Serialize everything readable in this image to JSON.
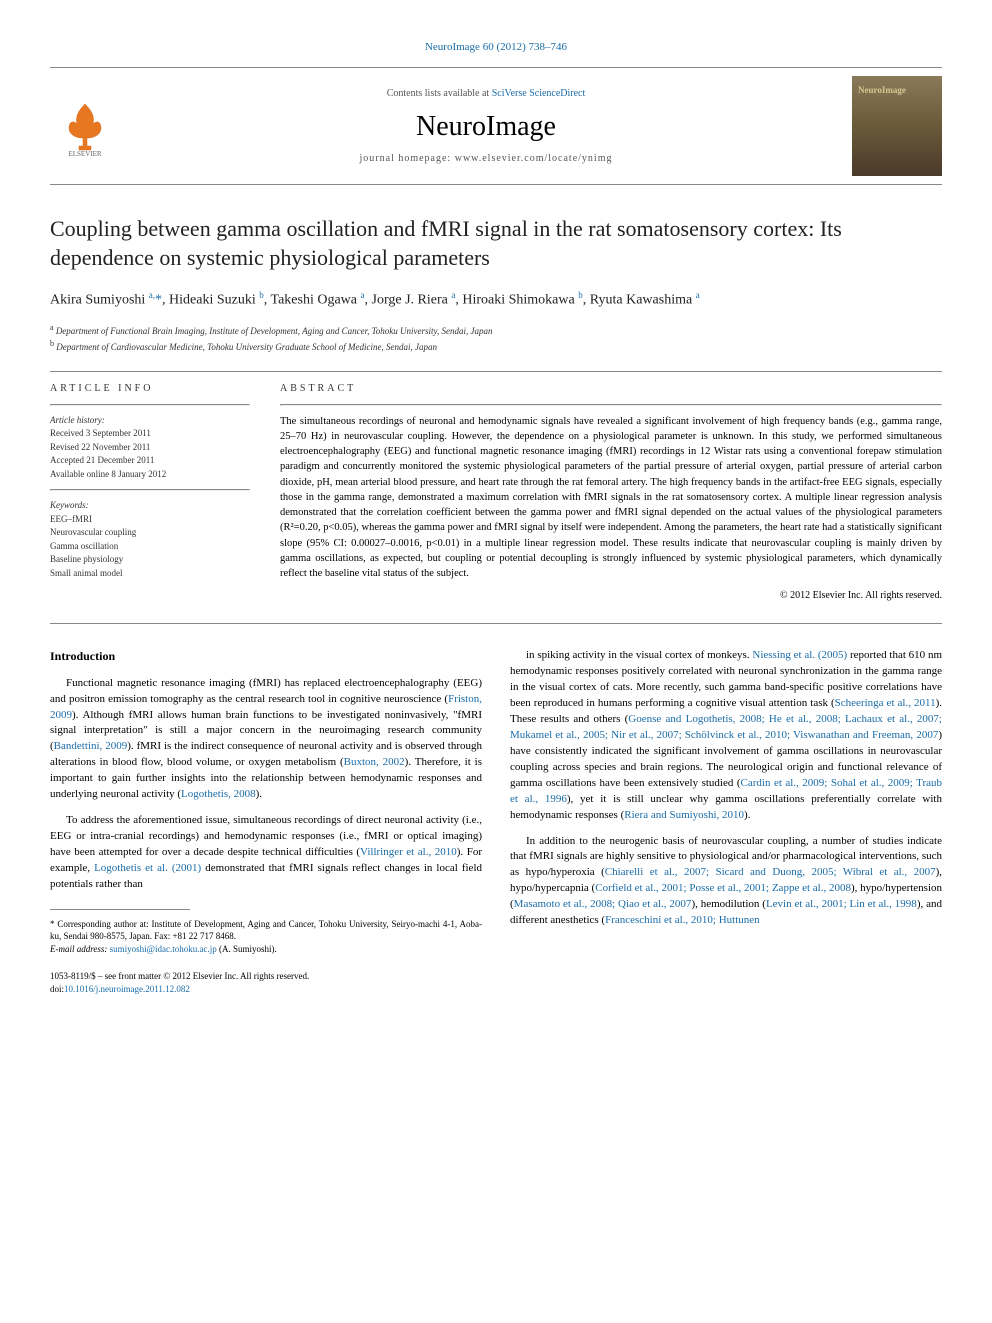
{
  "header": {
    "citation": "NeuroImage 60 (2012) 738–746",
    "contents_prefix": "Contents lists available at ",
    "contents_link": "SciVerse ScienceDirect",
    "journal_name": "NeuroImage",
    "homepage_prefix": "journal homepage: ",
    "homepage_url": "www.elsevier.com/locate/ynimg",
    "cover_label": "NeuroImage"
  },
  "article": {
    "title": "Coupling between gamma oscillation and fMRI signal in the rat somatosensory cortex: Its dependence on systemic physiological parameters",
    "authors_html": "Akira Sumiyoshi <span class='sup'>a,</span><span class='corr'>*</span>, Hideaki Suzuki <span class='sup'>b</span>, Takeshi Ogawa <span class='sup'>a</span>, Jorge J. Riera <span class='sup'>a</span>, Hiroaki Shimokawa <span class='sup'>b</span>, Ryuta Kawashima <span class='sup'>a</span>",
    "affiliations": [
      {
        "sup": "a",
        "text": "Department of Functional Brain Imaging, Institute of Development, Aging and Cancer, Tohoku University, Sendai, Japan"
      },
      {
        "sup": "b",
        "text": "Department of Cardiovascular Medicine, Tohoku University Graduate School of Medicine, Sendai, Japan"
      }
    ]
  },
  "article_info": {
    "heading": "ARTICLE INFO",
    "history_label": "Article history:",
    "history": [
      "Received 3 September 2011",
      "Revised 22 November 2011",
      "Accepted 21 December 2011",
      "Available online 8 January 2012"
    ],
    "keywords_label": "Keywords:",
    "keywords": [
      "EEG–fMRI",
      "Neurovascular coupling",
      "Gamma oscillation",
      "Baseline physiology",
      "Small animal model"
    ]
  },
  "abstract": {
    "heading": "ABSTRACT",
    "text": "The simultaneous recordings of neuronal and hemodynamic signals have revealed a significant involvement of high frequency bands (e.g., gamma range, 25–70 Hz) in neurovascular coupling. However, the dependence on a physiological parameter is unknown. In this study, we performed simultaneous electroencephalography (EEG) and functional magnetic resonance imaging (fMRI) recordings in 12 Wistar rats using a conventional forepaw stimulation paradigm and concurrently monitored the systemic physiological parameters of the partial pressure of arterial oxygen, partial pressure of arterial carbon dioxide, pH, mean arterial blood pressure, and heart rate through the rat femoral artery. The high frequency bands in the artifact-free EEG signals, especially those in the gamma range, demonstrated a maximum correlation with fMRI signals in the rat somatosensory cortex. A multiple linear regression analysis demonstrated that the correlation coefficient between the gamma power and fMRI signal depended on the actual values of the physiological parameters (R²=0.20, p<0.05), whereas the gamma power and fMRI signal by itself were independent. Among the parameters, the heart rate had a statistically significant slope (95% CI: 0.00027–0.0016, p<0.01) in a multiple linear regression model. These results indicate that neurovascular coupling is mainly driven by gamma oscillations, as expected, but coupling or potential decoupling is strongly influenced by systemic physiological parameters, which dynamically reflect the baseline vital status of the subject.",
    "copyright": "© 2012 Elsevier Inc. All rights reserved."
  },
  "body": {
    "intro_heading": "Introduction",
    "col1_p1": "Functional magnetic resonance imaging (fMRI) has replaced electroencephalography (EEG) and positron emission tomography as the central research tool in cognitive neuroscience (<span class='cite'>Friston, 2009</span>). Although fMRI allows human brain functions to be investigated noninvasively, \"fMRI signal interpretation\" is still a major concern in the neuroimaging research community (<span class='cite'>Bandettini, 2009</span>). fMRI is the indirect consequence of neuronal activity and is observed through alterations in blood flow, blood volume, or oxygen metabolism (<span class='cite'>Buxton, 2002</span>). Therefore, it is important to gain further insights into the relationship between hemodynamic responses and underlying neuronal activity (<span class='cite'>Logothetis, 2008</span>).",
    "col1_p2": "To address the aforementioned issue, simultaneous recordings of direct neuronal activity (i.e., EEG or intra-cranial recordings) and hemodynamic responses (i.e., fMRI or optical imaging) have been attempted for over a decade despite technical difficulties (<span class='cite'>Villringer et al., 2010</span>). For example, <span class='cite'>Logothetis et al. (2001)</span> demonstrated that fMRI signals reflect changes in local field potentials rather than",
    "col2_p1": "in spiking activity in the visual cortex of monkeys. <span class='cite'>Niessing et al. (2005)</span> reported that 610 nm hemodynamic responses positively correlated with neuronal synchronization in the gamma range in the visual cortex of cats. More recently, such gamma band-specific positive correlations have been reproduced in humans performing a cognitive visual attention task (<span class='cite'>Scheeringa et al., 2011</span>). These results and others (<span class='cite'>Goense and Logothetis, 2008; He et al., 2008; Lachaux et al., 2007; Mukamel et al., 2005; Nir et al., 2007; Schölvinck et al., 2010; Viswanathan and Freeman, 2007</span>) have consistently indicated the significant involvement of gamma oscillations in neurovascular coupling across species and brain regions. The neurological origin and functional relevance of gamma oscillations have been extensively studied (<span class='cite'>Cardin et al., 2009; Sohal et al., 2009; Traub et al., 1996</span>), yet it is still unclear why gamma oscillations preferentially correlate with hemodynamic responses (<span class='cite'>Riera and Sumiyoshi, 2010</span>).",
    "col2_p2": "In addition to the neurogenic basis of neurovascular coupling, a number of studies indicate that fMRI signals are highly sensitive to physiological and/or pharmacological interventions, such as hypo/hyperoxia (<span class='cite'>Chiarelli et al., 2007; Sicard and Duong, 2005; Wibral et al., 2007</span>), hypo/hypercapnia (<span class='cite'>Corfield et al., 2001; Posse et al., 2001; Zappe et al., 2008</span>), hypo/hypertension (<span class='cite'>Masamoto et al., 2008; Qiao et al., 2007</span>), hemodilution (<span class='cite'>Levin et al., 2001; Lin et al., 1998</span>), and different anesthetics (<span class='cite'>Franceschini et al., 2010; Huttunen</span>"
  },
  "footnote": {
    "corr_text": "* Corresponding author at: Institute of Development, Aging and Cancer, Tohoku University, Seiryo-machi 4-1, Aoba-ku, Sendai 980-8575, Japan. Fax: +81 22 717 8468.",
    "email_label": "E-mail address: ",
    "email": "sumiyoshi@idac.tohoku.ac.jp",
    "email_suffix": " (A. Sumiyoshi)."
  },
  "footer": {
    "front_matter": "1053-8119/$ – see front matter © 2012 Elsevier Inc. All rights reserved.",
    "doi_prefix": "doi:",
    "doi": "10.1016/j.neuroimage.2011.12.082"
  },
  "colors": {
    "link": "#1a6ca8",
    "text": "#000000",
    "muted": "#555555",
    "rule": "#888888"
  }
}
